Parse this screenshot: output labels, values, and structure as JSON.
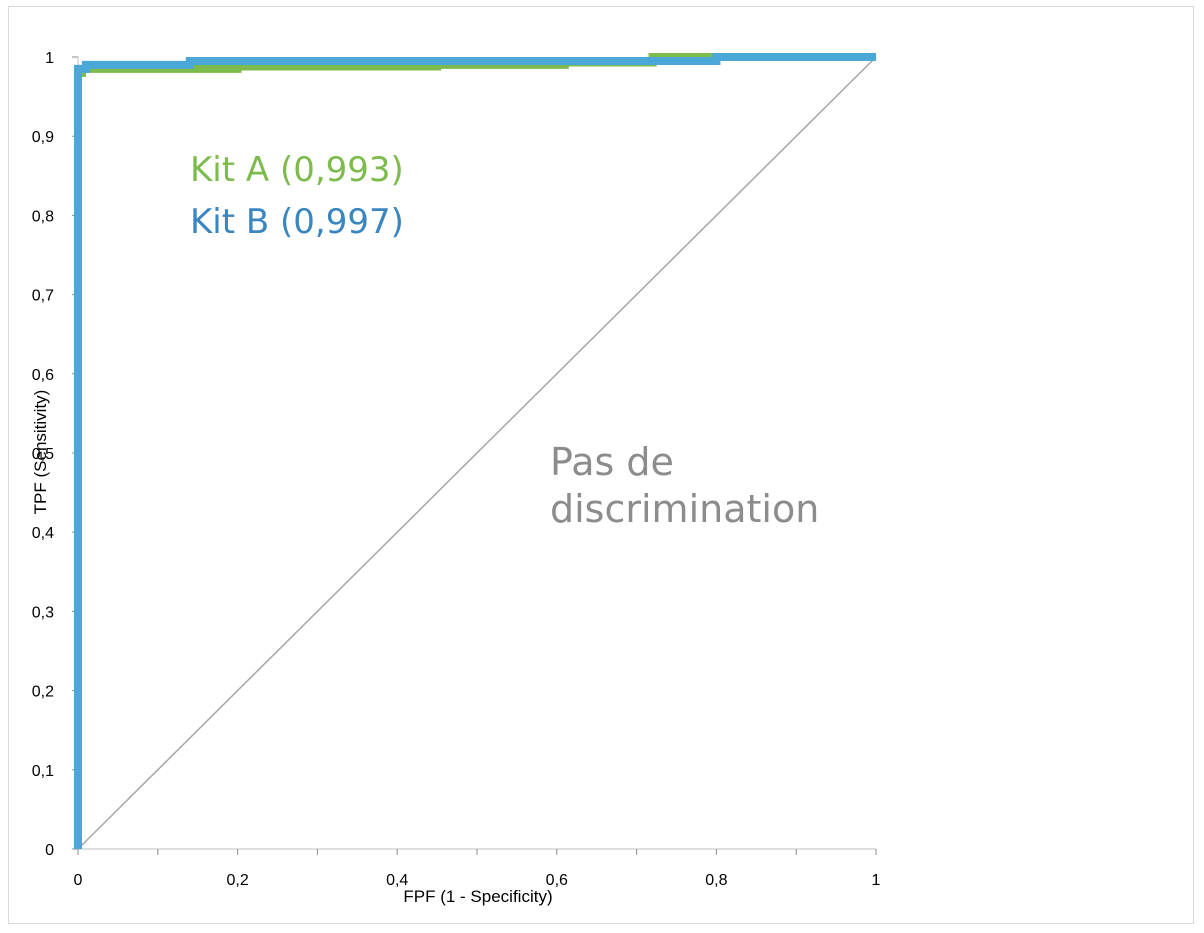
{
  "chart_data": {
    "type": "line",
    "xlabel": "FPF (1 - Specificity)",
    "ylabel": "TPF (Sensitivity)",
    "xlim": [
      0,
      1
    ],
    "ylim": [
      0,
      1
    ],
    "x_ticks": [
      "0",
      "0,2",
      "0,4",
      "0,6",
      "0,8",
      "1"
    ],
    "y_ticks": [
      "0",
      "0,1",
      "0,2",
      "0,3",
      "0,4",
      "0,5",
      "0,6",
      "0,7",
      "0,8",
      "0,9",
      "1"
    ],
    "grid": false,
    "legend": [
      {
        "label": "Kit A (0,993)",
        "color": "#7dbb4c"
      },
      {
        "label": "Kit B (0,997)",
        "color": "#3a86c1"
      }
    ],
    "annotations": [
      "Pas de",
      "discrimination"
    ],
    "series": [
      {
        "color": "#7dbb4c",
        "x": [
          0,
          0,
          0.005,
          0.005,
          0.2,
          0.2,
          0.45,
          0.45,
          0.61,
          0.61,
          0.72,
          0.72,
          1
        ],
        "y": [
          0,
          0.98,
          0.98,
          0.985,
          0.985,
          0.988,
          0.988,
          0.99,
          0.99,
          0.993,
          0.993,
          1,
          1
        ]
      },
      {
        "color": "#4aa8d8",
        "x": [
          0,
          0,
          0.01,
          0.01,
          0.14,
          0.14,
          0.8,
          0.8,
          1
        ],
        "y": [
          0,
          0.985,
          0.985,
          0.99,
          0.99,
          0.995,
          0.995,
          1,
          1
        ]
      },
      {
        "color": "#a6a6a6",
        "x": [
          0,
          1
        ],
        "y": [
          0,
          1
        ]
      }
    ]
  }
}
